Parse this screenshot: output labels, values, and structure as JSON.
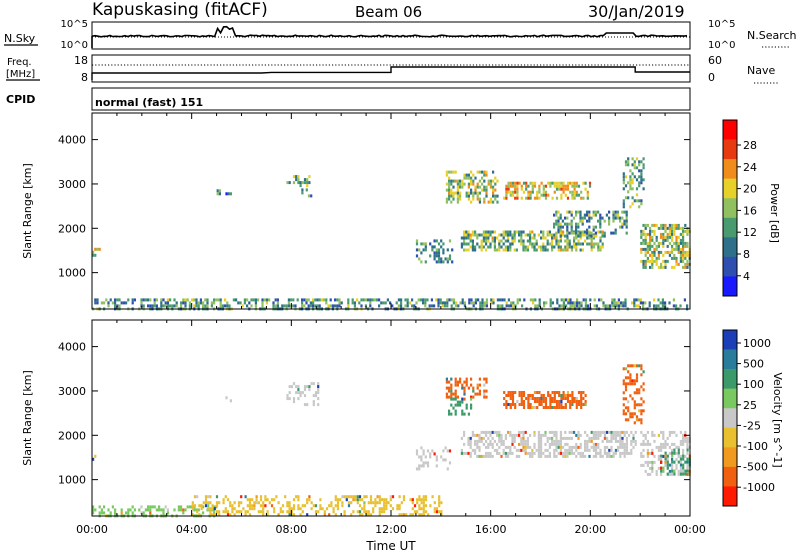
{
  "header": {
    "station": "Kapuskasing (fitACF)",
    "beam": "Beam 06",
    "date": "30/Jan/2019"
  },
  "top_panels": {
    "nsky_label": "N.Sky",
    "nsky_ticks": [
      "10^5",
      "10^0"
    ],
    "nsearch_label": "N.Search",
    "nsearch_ticks": [
      "10^5",
      "10^0"
    ],
    "freq_label_1": "Freq.",
    "freq_label_2": "[MHz]",
    "freq_ticks": [
      "18",
      "8"
    ],
    "nave_label": "Nave",
    "nave_ticks": [
      "60",
      "0"
    ],
    "cpid_label": "CPID",
    "cpid_value": "normal (fast) 151"
  },
  "chart_data": [
    {
      "type": "heatmap",
      "name": "power",
      "ylabel": "Slant Range [km]",
      "xlabel": "",
      "x_ticks": [
        "00:00",
        "04:00",
        "08:00",
        "12:00",
        "16:00",
        "20:00",
        "00:00"
      ],
      "x_range_hours": [
        0,
        24
      ],
      "y_ticks": [
        "1000",
        "2000",
        "3000",
        "4000"
      ],
      "ylim": [
        180,
        4600
      ],
      "colorbar": {
        "label": "Power [dB]",
        "ticks": [
          "28",
          "24",
          "20",
          "16",
          "12",
          "8",
          "4"
        ],
        "range": [
          0,
          30
        ],
        "colors": [
          "#1a1aff",
          "#2f4fb0",
          "#2e6f8a",
          "#4a9a70",
          "#90c060",
          "#e8d02a",
          "#f08c1c",
          "#e83a10",
          "#ff0000"
        ]
      },
      "regions": [
        {
          "x": [
            0.0,
            24.0
          ],
          "y": [
            200,
            420
          ],
          "level": 0.35,
          "density": 0.5
        },
        {
          "x": [
            0.0,
            0.3
          ],
          "y": [
            1380,
            1560
          ],
          "level": 0.55,
          "density": 0.6
        },
        {
          "x": [
            5.0,
            5.6
          ],
          "y": [
            2750,
            2880
          ],
          "level": 0.3,
          "density": 0.35
        },
        {
          "x": [
            7.8,
            8.7
          ],
          "y": [
            2950,
            3200
          ],
          "level": 0.4,
          "density": 0.35
        },
        {
          "x": [
            8.4,
            9.1
          ],
          "y": [
            2700,
            2900
          ],
          "level": 0.35,
          "density": 0.3
        },
        {
          "x": [
            14.2,
            16.3
          ],
          "y": [
            2600,
            3300
          ],
          "level": 0.5,
          "density": 0.5
        },
        {
          "x": [
            16.5,
            20.0
          ],
          "y": [
            2650,
            3050
          ],
          "level": 0.6,
          "density": 0.6
        },
        {
          "x": [
            13.0,
            14.5
          ],
          "y": [
            1250,
            1750
          ],
          "level": 0.3,
          "density": 0.4
        },
        {
          "x": [
            14.8,
            20.5
          ],
          "y": [
            1500,
            1950
          ],
          "level": 0.45,
          "density": 0.6
        },
        {
          "x": [
            18.5,
            21.5
          ],
          "y": [
            1800,
            2400
          ],
          "level": 0.35,
          "density": 0.4
        },
        {
          "x": [
            21.3,
            22.1
          ],
          "y": [
            2500,
            3600
          ],
          "level": 0.4,
          "density": 0.35
        },
        {
          "x": [
            22.0,
            24.0
          ],
          "y": [
            1100,
            2100
          ],
          "level": 0.5,
          "density": 0.6
        }
      ]
    },
    {
      "type": "heatmap",
      "name": "velocity",
      "ylabel": "Slant Range [km]",
      "xlabel": "Time UT",
      "x_ticks": [
        "00:00",
        "04:00",
        "08:00",
        "12:00",
        "16:00",
        "20:00",
        "00:00"
      ],
      "x_range_hours": [
        0,
        24
      ],
      "y_ticks": [
        "1000",
        "2000",
        "3000",
        "4000"
      ],
      "ylim": [
        180,
        4600
      ],
      "colorbar": {
        "label": "Velocity [m s^-1]",
        "ticks": [
          "1000",
          "500",
          "100",
          "25",
          "-25",
          "-100",
          "-500",
          "-1000"
        ],
        "colors": [
          "#1c3fb8",
          "#2a7d9a",
          "#3c9a6a",
          "#7ac860",
          "#c8c8c8",
          "#e8c030",
          "#f09a20",
          "#f06010",
          "#ff1a00"
        ]
      },
      "regions": [
        {
          "x": [
            0.0,
            5.0
          ],
          "y": [
            200,
            420
          ],
          "color": "#7ac860",
          "density": 0.4
        },
        {
          "x": [
            4.0,
            14.0
          ],
          "y": [
            200,
            650
          ],
          "color": "#e8c030",
          "density": 0.35
        },
        {
          "x": [
            0.0,
            0.3
          ],
          "y": [
            1380,
            1560
          ],
          "color": "#e8c030",
          "density": 0.5
        },
        {
          "x": [
            5.0,
            5.6
          ],
          "y": [
            2750,
            2880
          ],
          "color": "#c8c8c8",
          "density": 0.3
        },
        {
          "x": [
            7.8,
            9.1
          ],
          "y": [
            2700,
            3200
          ],
          "color": "#c8c8c8",
          "density": 0.3
        },
        {
          "x": [
            14.2,
            15.8
          ],
          "y": [
            2850,
            3300
          ],
          "color": "#f06010",
          "density": 0.45
        },
        {
          "x": [
            14.2,
            15.2
          ],
          "y": [
            2500,
            2850
          ],
          "color": "#3c9a6a",
          "density": 0.35
        },
        {
          "x": [
            16.5,
            19.8
          ],
          "y": [
            2650,
            3000
          ],
          "color": "#f06010",
          "density": 0.6
        },
        {
          "x": [
            13.0,
            14.5
          ],
          "y": [
            1250,
            1750
          ],
          "color": "#c8c8c8",
          "density": 0.35
        },
        {
          "x": [
            14.8,
            21.8
          ],
          "y": [
            1500,
            2100
          ],
          "color": "#c8c8c8",
          "density": 0.55
        },
        {
          "x": [
            21.3,
            22.1
          ],
          "y": [
            2300,
            3600
          ],
          "color": "#f06010",
          "density": 0.35
        },
        {
          "x": [
            22.0,
            24.0
          ],
          "y": [
            1100,
            2100
          ],
          "color": "#c8c8c8",
          "density": 0.45
        },
        {
          "x": [
            22.8,
            24.0
          ],
          "y": [
            1150,
            1700
          ],
          "color": "#3c9a6a",
          "density": 0.4
        }
      ]
    }
  ]
}
